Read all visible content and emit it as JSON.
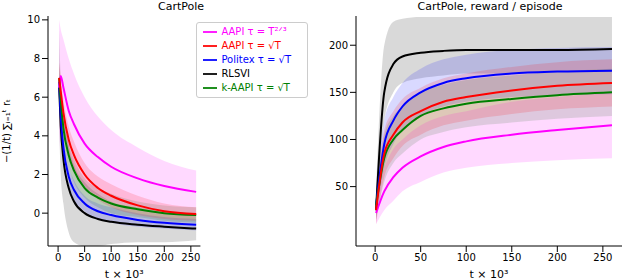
{
  "chart_data": [
    {
      "type": "line",
      "title": "CartPole",
      "x_label": "t × 10³",
      "y_label": "−(1/t) ∑ᵢ₌₁ᵗ rₜ",
      "x": [
        2,
        5,
        10,
        20,
        30,
        50,
        75,
        100,
        150,
        200,
        260
      ],
      "xlim": [
        -19,
        268
      ],
      "xticks": [
        0,
        50,
        100,
        150,
        200,
        250
      ],
      "ylim": [
        -1.7,
        10.2
      ],
      "yticks": [
        0,
        2,
        4,
        6,
        8,
        10
      ],
      "legend": "upper right",
      "series": [
        {
          "name": "RLSVI",
          "color": "#000000",
          "values": [
            6.5,
            4.5,
            2.8,
            1.3,
            0.6,
            0.0,
            -0.3,
            -0.45,
            -0.6,
            -0.7,
            -0.8
          ],
          "lower": [
            4.5,
            2.0,
            0.5,
            -1.0,
            -1.5,
            -1.7,
            -1.7,
            -1.6,
            -1.5,
            -1.5,
            -1.4
          ],
          "upper": [
            9.5,
            7.0,
            5.5,
            3.5,
            2.5,
            1.6,
            1.0,
            0.6,
            0.3,
            0.1,
            0.0
          ]
        },
        {
          "name": "Politex τ = √T",
          "color": "#0000ff",
          "values": [
            6.8,
            5.0,
            3.4,
            1.9,
            1.2,
            0.5,
            0.1,
            -0.1,
            -0.35,
            -0.5,
            -0.6
          ],
          "lower": [
            6.0,
            4.3,
            2.8,
            1.4,
            0.7,
            0.1,
            -0.3,
            -0.5,
            -0.7,
            -0.8,
            -0.9
          ],
          "upper": [
            7.6,
            5.7,
            4.0,
            2.4,
            1.7,
            0.9,
            0.5,
            0.3,
            0.0,
            -0.2,
            -0.3
          ]
        },
        {
          "name": "k-AAPI τ = √T",
          "color": "#008000",
          "values": [
            7.0,
            5.8,
            4.4,
            3.0,
            2.2,
            1.3,
            0.8,
            0.5,
            0.2,
            0.0,
            -0.1
          ],
          "lower": [
            6.2,
            5.1,
            3.8,
            2.4,
            1.6,
            0.8,
            0.3,
            0.0,
            -0.2,
            -0.4,
            -0.5
          ],
          "upper": [
            7.8,
            6.5,
            5.0,
            3.6,
            2.8,
            1.8,
            1.3,
            1.0,
            0.6,
            0.4,
            0.3
          ]
        },
        {
          "name": "AAPI τ = T²ᐟ³",
          "color": "#ff00ff",
          "values": [
            6.5,
            7.1,
            6.5,
            5.3,
            4.6,
            3.6,
            2.9,
            2.4,
            1.8,
            1.4,
            1.1
          ],
          "lower": [
            3.0,
            4.6,
            4.0,
            2.8,
            2.2,
            1.4,
            0.9,
            0.6,
            0.3,
            0.1,
            0.0
          ],
          "upper": [
            10.0,
            9.5,
            9.0,
            8.0,
            7.2,
            6.0,
            5.0,
            4.3,
            3.4,
            2.7,
            2.2
          ]
        },
        {
          "name": "AAPI τ = √T",
          "color": "#ff0000",
          "values": [
            7.0,
            6.3,
            5.2,
            3.8,
            3.0,
            2.0,
            1.3,
            0.9,
            0.4,
            0.1,
            -0.05
          ],
          "lower": [
            6.2,
            5.5,
            4.5,
            3.1,
            2.3,
            1.4,
            0.7,
            0.3,
            -0.1,
            -0.3,
            -0.4
          ],
          "upper": [
            7.8,
            7.1,
            5.9,
            4.5,
            3.7,
            2.6,
            1.9,
            1.5,
            0.9,
            0.5,
            0.3
          ]
        }
      ]
    },
    {
      "type": "line",
      "title": "CartPole, reward / episode",
      "x_label": "t × 10³",
      "x": [
        1,
        10,
        20,
        30,
        50,
        75,
        100,
        150,
        200,
        260
      ],
      "xlim": [
        -21,
        271
      ],
      "xticks": [
        0,
        50,
        100,
        150,
        200,
        250
      ],
      "ylim": [
        -13,
        231
      ],
      "yticks": [
        50,
        100,
        150,
        200
      ],
      "series": [
        {
          "color": "#000000",
          "values": [
            25,
            150,
            180,
            188,
            192,
            194,
            195,
            195,
            195,
            196
          ],
          "lower": [
            10,
            120,
            150,
            160,
            165,
            168,
            170,
            170,
            172,
            172
          ],
          "upper": [
            40,
            200,
            225,
            228,
            230,
            230,
            230,
            230,
            230,
            230
          ]
        },
        {
          "color": "#0000ff",
          "values": [
            30,
            95,
            120,
            135,
            150,
            160,
            165,
            170,
            172,
            173
          ],
          "lower": [
            15,
            70,
            95,
            110,
            125,
            135,
            140,
            145,
            147,
            148
          ],
          "upper": [
            45,
            120,
            145,
            160,
            175,
            185,
            190,
            195,
            197,
            198
          ]
        },
        {
          "color": "#008000",
          "values": [
            30,
            80,
            100,
            110,
            125,
            133,
            138,
            143,
            147,
            150
          ],
          "lower": [
            15,
            55,
            75,
            85,
            100,
            108,
            113,
            118,
            122,
            125
          ],
          "upper": [
            45,
            105,
            125,
            135,
            150,
            158,
            163,
            168,
            172,
            175
          ]
        },
        {
          "color": "#ff00ff",
          "values": [
            22,
            45,
            60,
            70,
            82,
            92,
            98,
            105,
            110,
            115
          ],
          "lower": [
            10,
            25,
            35,
            45,
            55,
            65,
            70,
            75,
            78,
            80
          ],
          "upper": [
            40,
            70,
            90,
            100,
            115,
            125,
            130,
            140,
            145,
            150
          ]
        },
        {
          "color": "#ff0000",
          "values": [
            25,
            85,
            105,
            118,
            130,
            140,
            145,
            152,
            157,
            160
          ],
          "lower": [
            10,
            60,
            80,
            93,
            105,
            115,
            120,
            127,
            132,
            135
          ],
          "upper": [
            40,
            110,
            130,
            143,
            155,
            165,
            170,
            177,
            182,
            185
          ]
        }
      ]
    }
  ]
}
